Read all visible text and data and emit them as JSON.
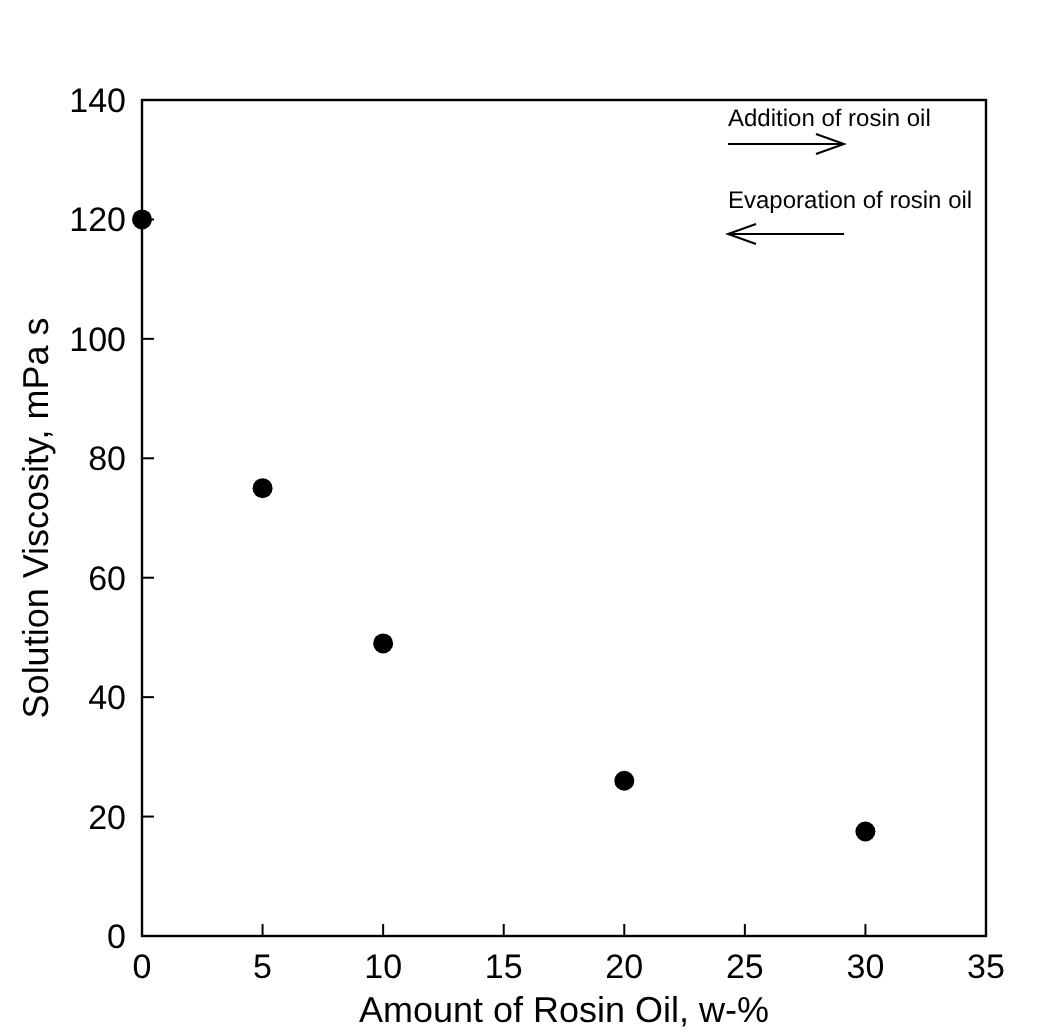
{
  "chart_data": {
    "type": "scatter",
    "xlabel": "Amount of Rosin Oil, w-%",
    "ylabel": "Solution Viscosity, mPa s",
    "x": [
      0,
      5,
      10,
      20,
      30
    ],
    "values": [
      120,
      75,
      49,
      26,
      17.5
    ],
    "color": "#000000",
    "marker": "circle",
    "xlim": [
      0,
      35
    ],
    "xticks": [
      0,
      5,
      10,
      15,
      20,
      25,
      30,
      35
    ],
    "ylim": [
      0,
      140
    ],
    "yticks": [
      0,
      20,
      40,
      60,
      80,
      100,
      120,
      140
    ],
    "grid": false,
    "annotations": [
      "Addition of rosin oil",
      "Evaporation of rosin oil"
    ]
  }
}
